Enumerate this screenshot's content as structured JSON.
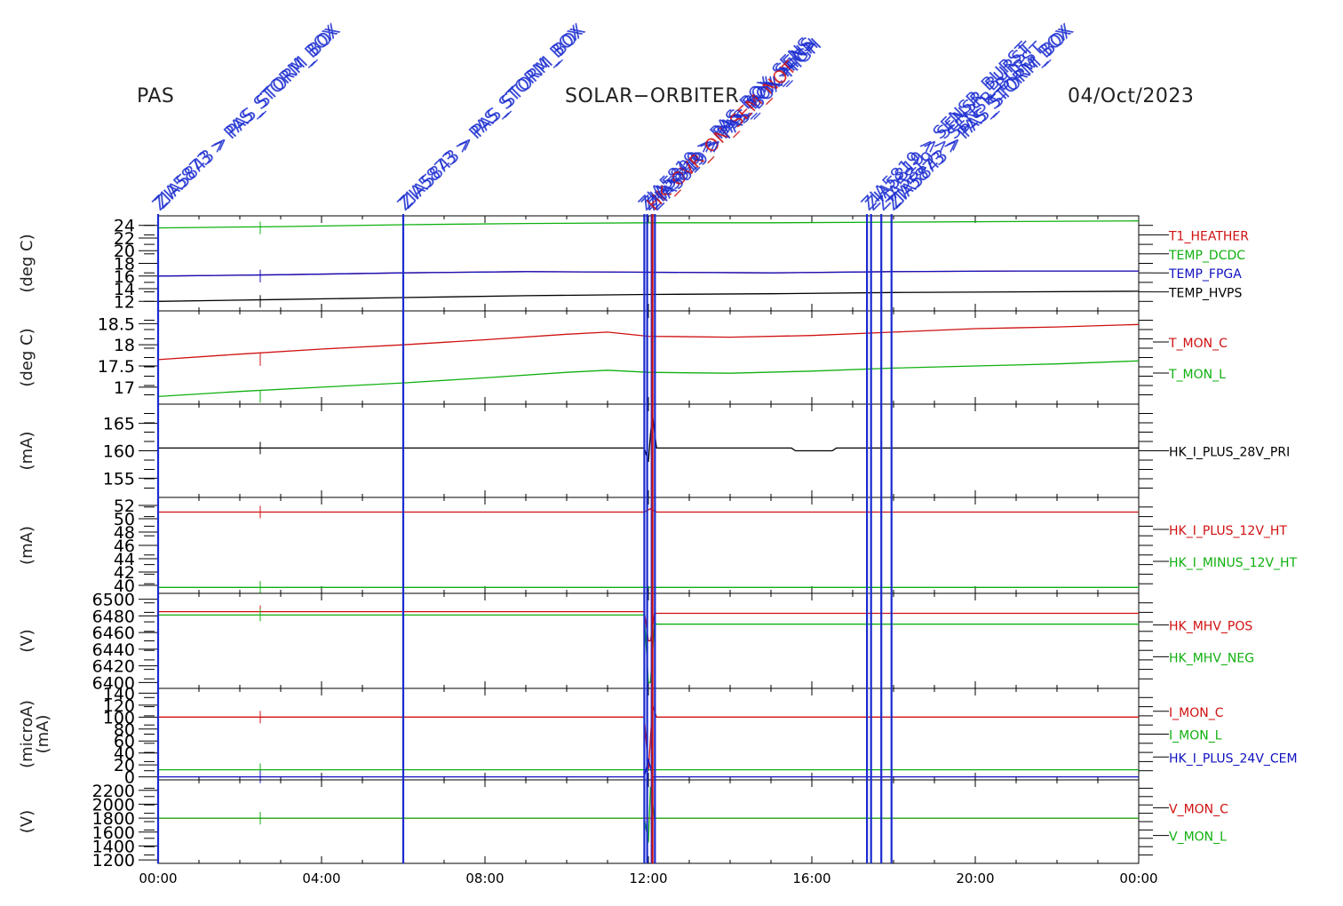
{
  "header": {
    "left": "PAS",
    "center": "SOLAR−ORBITER",
    "right": "04/Oct/2023"
  },
  "colors": {
    "red": "#d01010",
    "green": "#10b010",
    "blue": "#1010c0",
    "black": "#000000",
    "event_blue": "#1a2bd0"
  },
  "x_axis": {
    "range_hours": [
      0,
      24
    ],
    "ticks": [
      {
        "h": 0,
        "label": "00:00"
      },
      {
        "h": 4,
        "label": "04:00"
      },
      {
        "h": 8,
        "label": "08:00"
      },
      {
        "h": 12,
        "label": "12:00"
      },
      {
        "h": 16,
        "label": "16:00"
      },
      {
        "h": 20,
        "label": "20:00"
      },
      {
        "h": 24,
        "label": "00:00"
      }
    ]
  },
  "events": [
    {
      "h": 0.0,
      "color": "blue",
      "labels": [
        "ZIA5873 > PAS_STORM_BOX",
        "ZIA5843 > PAS_STORM_BOX"
      ]
    },
    {
      "h": 6.0,
      "color": "blue",
      "labels": [
        "ZIA5873 > PAS_STORM_BOX",
        "ZIA5843 > PAS_STORM_BOX"
      ]
    },
    {
      "h": 11.9,
      "color": "blue",
      "labels": [
        "ZIA5819 > PAS_BOX_SENS"
      ]
    },
    {
      "h": 11.97,
      "color": "blue",
      "labels": [
        "ZIA5890 > PAS_BOX_SENS"
      ]
    },
    {
      "h": 12.08,
      "color": "blue",
      "labels": [
        "ZIA5819 > PAS_BOX_HIGH"
      ]
    },
    {
      "h": 12.1,
      "color": "red",
      "labels": [
        "HK_OVR_ON_SEM_NOT"
      ]
    },
    {
      "h": 12.16,
      "color": "blue",
      "labels": [
        "ZIA5819 > PAS_BOX_HIGH"
      ]
    },
    {
      "h": 17.35,
      "color": "blue",
      "labels": [
        "ZIA5819 > SENSR_BURST"
      ]
    },
    {
      "h": 17.45,
      "color": "blue",
      "labels": [
        "ZIA5819 > SENSR_BURST"
      ]
    },
    {
      "h": 17.7,
      "color": "blue",
      "labels": [
        "ZIA5819 > SENSR_BURST"
      ]
    },
    {
      "h": 17.95,
      "color": "blue",
      "labels": [
        "ZIA5873 > PAS_STORM_BOX",
        "ZIA5843 > PAS_STORM_BOX"
      ]
    }
  ],
  "chart_data": [
    {
      "type": "line",
      "ylabel": "(deg C)",
      "ylim": [
        10.5,
        25.5
      ],
      "yticks": [
        12,
        14,
        16,
        18,
        20,
        22,
        24
      ],
      "series": [
        {
          "name": "T1_HEATHER",
          "color": "red",
          "x": [
            0,
            3,
            6,
            9,
            12,
            15,
            18,
            21,
            24
          ],
          "y": [
            16.0,
            16.2,
            16.5,
            16.7,
            16.6,
            16.5,
            16.7,
            16.8,
            16.8
          ]
        },
        {
          "name": "TEMP_DCDC",
          "color": "green",
          "x": [
            0,
            3,
            6,
            9,
            12,
            15,
            18,
            21,
            24
          ],
          "y": [
            23.6,
            23.8,
            24.1,
            24.3,
            24.4,
            24.4,
            24.5,
            24.6,
            24.7
          ]
        },
        {
          "name": "TEMP_FPGA",
          "color": "blue",
          "x": [
            0,
            3,
            6,
            9,
            12,
            15,
            18,
            21,
            24
          ],
          "y": [
            16.0,
            16.2,
            16.5,
            16.7,
            16.6,
            16.5,
            16.7,
            16.8,
            16.8
          ]
        },
        {
          "name": "TEMP_HVPS",
          "color": "black",
          "x": [
            0,
            3,
            6,
            9,
            12,
            15,
            18,
            21,
            24
          ],
          "y": [
            12.0,
            12.3,
            12.6,
            12.9,
            13.1,
            13.2,
            13.4,
            13.5,
            13.6
          ]
        }
      ]
    },
    {
      "type": "line",
      "ylabel": "(deg C)",
      "ylim": [
        16.6,
        18.8
      ],
      "yticks": [
        17.0,
        17.5,
        18.0,
        18.5
      ],
      "series": [
        {
          "name": "T_MON_C",
          "color": "red",
          "x": [
            0,
            2,
            4,
            6,
            8,
            10,
            11,
            12,
            14,
            16,
            18,
            20,
            22,
            24
          ],
          "y": [
            17.65,
            17.78,
            17.9,
            18.0,
            18.12,
            18.25,
            18.3,
            18.2,
            18.18,
            18.22,
            18.3,
            18.38,
            18.42,
            18.48
          ]
        },
        {
          "name": "T_MON_L",
          "color": "green",
          "x": [
            0,
            2,
            4,
            6,
            8,
            10,
            11,
            12,
            14,
            16,
            18,
            20,
            22,
            24
          ],
          "y": [
            16.78,
            16.9,
            17.0,
            17.1,
            17.22,
            17.35,
            17.4,
            17.35,
            17.33,
            17.38,
            17.45,
            17.5,
            17.55,
            17.62
          ]
        }
      ]
    },
    {
      "type": "line",
      "ylabel": "(mA)",
      "ylim": [
        151.5,
        168.5
      ],
      "yticks": [
        155,
        160,
        165
      ],
      "series": [
        {
          "name": "HK_I_PLUS_28V_PRI",
          "color": "black",
          "x": [
            0,
            6,
            11.9,
            12.0,
            12.05,
            12.1,
            12.2,
            15.5,
            15.6,
            16.5,
            16.6,
            24
          ],
          "y": [
            160.5,
            160.5,
            160.5,
            158.0,
            163.0,
            166.5,
            160.5,
            160.5,
            160.0,
            160.0,
            160.5,
            160.5
          ]
        }
      ]
    },
    {
      "type": "line",
      "ylabel": "(mA)",
      "ylim": [
        38.8,
        53.2
      ],
      "yticks": [
        40,
        42,
        44,
        46,
        48,
        50,
        52
      ],
      "series": [
        {
          "name": "HK_I_PLUS_12V_HT",
          "color": "red",
          "x": [
            0,
            6,
            11.9,
            12.05,
            12.2,
            24
          ],
          "y": [
            51.0,
            51.0,
            51.0,
            51.5,
            51.0,
            51.0
          ]
        },
        {
          "name": "HK_I_MINUS_12V_HT",
          "color": "green",
          "x": [
            0,
            24
          ],
          "y": [
            39.7,
            39.7
          ]
        }
      ]
    },
    {
      "type": "line",
      "ylabel": "(V)",
      "ylim": [
        6393,
        6507
      ],
      "yticks": [
        6400,
        6420,
        6440,
        6460,
        6480,
        6500
      ],
      "series": [
        {
          "name": "HK_MHV_POS",
          "color": "red",
          "x": [
            0,
            11.9,
            12.0,
            12.05,
            12.15,
            24
          ],
          "y": [
            6485,
            6485,
            6450,
            6450,
            6483,
            6483
          ]
        },
        {
          "name": "HK_MHV_NEG",
          "color": "green",
          "x": [
            0,
            11.9,
            12.0,
            12.05,
            12.15,
            12.2,
            24
          ],
          "y": [
            6481,
            6481,
            6400,
            6400,
            6472,
            6470,
            6470
          ]
        }
      ]
    },
    {
      "type": "line",
      "ylabel": "(microA)\n(mA)",
      "ylim": [
        -5,
        148
      ],
      "yticks": [
        0,
        20,
        40,
        60,
        80,
        100,
        120,
        140
      ],
      "series": [
        {
          "name": "I_MON_C",
          "color": "red",
          "x": [
            0,
            11.9,
            12.0,
            12.1,
            12.2,
            24
          ],
          "y": [
            100,
            100,
            10,
            120,
            100,
            100
          ]
        },
        {
          "name": "I_MON_L",
          "color": "green",
          "x": [
            0,
            24
          ],
          "y": [
            12,
            12
          ]
        },
        {
          "name": "HK_I_PLUS_24V_CEM",
          "color": "blue",
          "x": [
            0,
            11.9,
            12.0,
            12.1,
            24
          ],
          "y": [
            0,
            0,
            30,
            0,
            0
          ]
        }
      ]
    },
    {
      "type": "line",
      "ylabel": "(V)",
      "ylim": [
        1150,
        2350
      ],
      "yticks": [
        1200,
        1400,
        1600,
        1800,
        2000,
        2200
      ],
      "series": [
        {
          "name": "V_MON_C",
          "color": "red",
          "x": [
            0,
            24
          ],
          "y": [
            1800,
            1800
          ]
        },
        {
          "name": "V_MON_L",
          "color": "green",
          "x": [
            0,
            11.9,
            12.0,
            12.05,
            12.15,
            24
          ],
          "y": [
            1800,
            1800,
            1450,
            2250,
            1800,
            1800
          ]
        }
      ]
    }
  ]
}
